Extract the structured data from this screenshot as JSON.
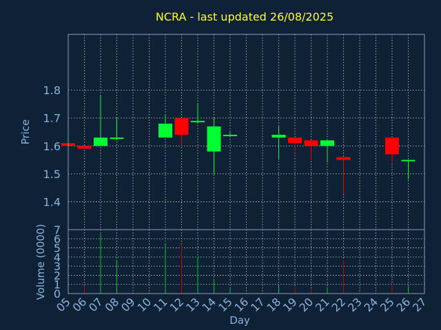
{
  "colors": {
    "background": "#0f2135",
    "title": "#ffff33",
    "axis_text": "#8ab4e0",
    "up": "#00ff33",
    "down": "#ff0000",
    "up_volume": "#00cc2a",
    "down_volume": "#cc0000"
  },
  "chart_data": {
    "type": "candlestick",
    "title": "NCRA - last updated 26/08/2025",
    "xlabel": "Day",
    "price_panel": {
      "ylabel": "Price",
      "yticks": [
        "1.4",
        "1.5",
        "1.6",
        "1.7",
        "1.8"
      ],
      "ylim": [
        1.3,
        2.0
      ]
    },
    "volume_panel": {
      "ylabel": "Volume (0000)",
      "yticks": [
        "0",
        "1",
        "2",
        "3",
        "4",
        "5",
        "6",
        "7"
      ],
      "ylim": [
        0,
        7
      ]
    },
    "x_ticks": [
      "05",
      "06",
      "07",
      "08",
      "09",
      "10",
      "11",
      "12",
      "13",
      "14",
      "15",
      "16",
      "17",
      "18",
      "19",
      "20",
      "21",
      "22",
      "23",
      "24",
      "25",
      "26",
      "27"
    ],
    "x_range": [
      5,
      27
    ],
    "candles": [
      {
        "day": 5,
        "open": 1.61,
        "high": 1.61,
        "low": 1.6,
        "close": 1.6,
        "volume": 0.3
      },
      {
        "day": 6,
        "open": 1.6,
        "high": 1.6,
        "low": 1.59,
        "close": 1.59,
        "volume": 0.9
      },
      {
        "day": 7,
        "open": 1.6,
        "high": 1.78,
        "low": 1.6,
        "close": 1.63,
        "volume": 6.5
      },
      {
        "day": 8,
        "open": 1.625,
        "high": 1.7,
        "low": 1.62,
        "close": 1.63,
        "volume": 3.7
      },
      {
        "day": 11,
        "open": 1.63,
        "high": 1.71,
        "low": 1.63,
        "close": 1.68,
        "volume": 5.4
      },
      {
        "day": 12,
        "open": 1.7,
        "high": 1.7,
        "low": 1.6,
        "close": 1.64,
        "volume": 5.4
      },
      {
        "day": 13,
        "open": 1.685,
        "high": 1.75,
        "low": 1.68,
        "close": 1.69,
        "volume": 4.0
      },
      {
        "day": 14,
        "open": 1.58,
        "high": 1.7,
        "low": 1.5,
        "close": 1.67,
        "volume": 1.6
      },
      {
        "day": 15,
        "open": 1.635,
        "high": 1.65,
        "low": 1.635,
        "close": 1.64,
        "volume": 0.6
      },
      {
        "day": 18,
        "open": 1.63,
        "high": 1.67,
        "low": 1.55,
        "close": 1.64,
        "volume": 0.9
      },
      {
        "day": 19,
        "open": 1.63,
        "high": 1.63,
        "low": 1.58,
        "close": 1.61,
        "volume": 0.7
      },
      {
        "day": 20,
        "open": 1.62,
        "high": 1.62,
        "low": 1.55,
        "close": 1.6,
        "volume": 0.5
      },
      {
        "day": 21,
        "open": 1.6,
        "high": 1.62,
        "low": 1.54,
        "close": 1.62,
        "volume": 0.7
      },
      {
        "day": 22,
        "open": 1.56,
        "high": 1.56,
        "low": 1.43,
        "close": 1.55,
        "volume": 3.7
      },
      {
        "day": 25,
        "open": 1.63,
        "high": 1.63,
        "low": 1.54,
        "close": 1.57,
        "volume": 1.0
      },
      {
        "day": 26,
        "open": 1.545,
        "high": 1.55,
        "low": 1.48,
        "close": 1.55,
        "volume": 0.8
      }
    ]
  }
}
